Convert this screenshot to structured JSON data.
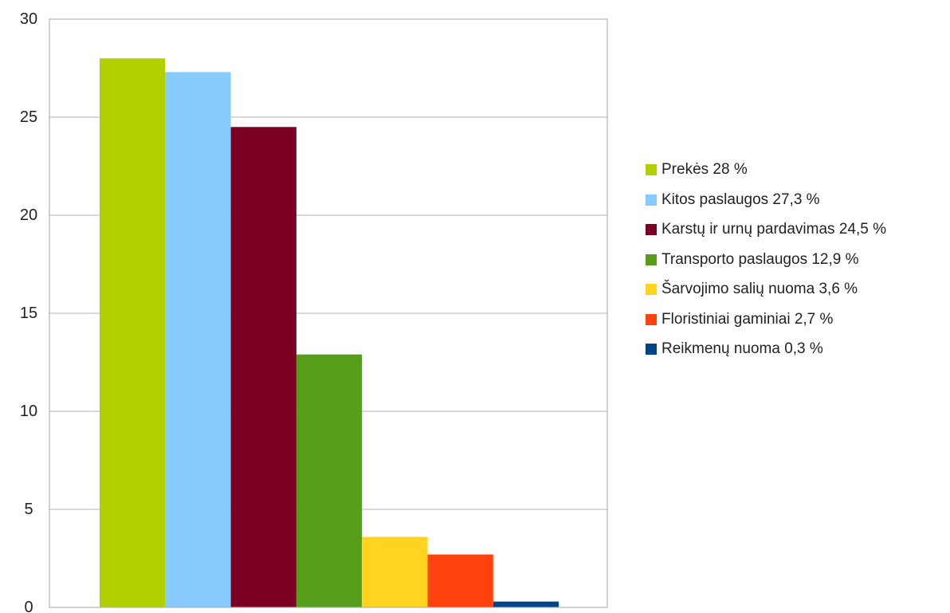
{
  "chart_data": {
    "type": "bar",
    "title": "",
    "xlabel": "",
    "ylabel": "",
    "ylim": [
      0,
      30
    ],
    "yticks": [
      0,
      5,
      10,
      15,
      20,
      25,
      30
    ],
    "grid": true,
    "legend_position": "right",
    "series": [
      {
        "name": "Prekės 28 %",
        "value": 28,
        "color": "#b3cf00"
      },
      {
        "name": "Kitos paslaugos 27,3 %",
        "value": 27.3,
        "color": "#87cafe"
      },
      {
        "name": "Karstų ir urnų pardavimas 24,5 %",
        "value": 24.5,
        "color": "#7b0021"
      },
      {
        "name": "Transporto paslaugos 12,9 %",
        "value": 12.9,
        "color": "#579d1c"
      },
      {
        "name": "Šarvojimo salių nuoma 3,6 %",
        "value": 3.6,
        "color": "#ffd320"
      },
      {
        "name": "Floristiniai gaminiai 2,7  %",
        "value": 2.7,
        "color": "#ff420e"
      },
      {
        "name": "Reikmenų nuoma 0,3 %",
        "value": 0.3,
        "color": "#004586"
      }
    ]
  }
}
